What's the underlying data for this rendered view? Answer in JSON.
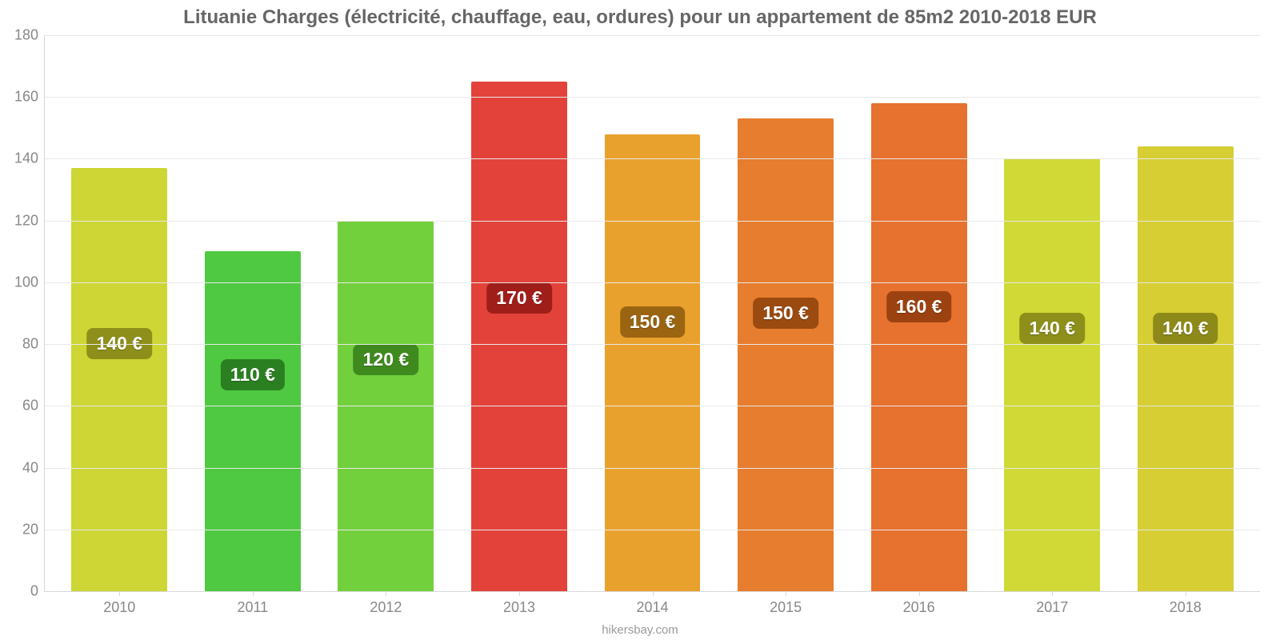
{
  "chart": {
    "type": "bar",
    "title": "Lituanie Charges (électricité, chauffage, eau, ordures) pour un appartement de 85m2 2010-2018 EUR",
    "title_fontsize": 24,
    "title_color": "#666666",
    "background_color": "#ffffff",
    "grid_color": "#e8e8e8",
    "axis_color": "#d8d8d8",
    "tick_label_color": "#888888",
    "tick_label_fontsize": 18,
    "ylim": [
      0,
      180
    ],
    "ytick_step": 20,
    "yticks": [
      0,
      20,
      40,
      60,
      80,
      100,
      120,
      140,
      160,
      180
    ],
    "bar_width_pct": 72,
    "bars": [
      {
        "category": "2010",
        "value": 137,
        "label": "140 €",
        "bar_color": "#cdd634",
        "badge_bg": "#8d8f1a",
        "badge_text": "#ffffff",
        "badge_y": 75
      },
      {
        "category": "2011",
        "value": 110,
        "label": "110 €",
        "bar_color": "#4fc941",
        "badge_bg": "#2a7f20",
        "badge_text": "#ffffff",
        "badge_y": 65
      },
      {
        "category": "2012",
        "value": 120,
        "label": "120 €",
        "bar_color": "#73d03d",
        "badge_bg": "#3f8a1f",
        "badge_text": "#ffffff",
        "badge_y": 70
      },
      {
        "category": "2013",
        "value": 165,
        "label": "170 €",
        "bar_color": "#e3423a",
        "badge_bg": "#a01e19",
        "badge_text": "#ffffff",
        "badge_y": 90
      },
      {
        "category": "2014",
        "value": 148,
        "label": "150 €",
        "bar_color": "#e9a12e",
        "badge_bg": "#9b6411",
        "badge_text": "#ffffff",
        "badge_y": 82
      },
      {
        "category": "2015",
        "value": 153,
        "label": "150 €",
        "bar_color": "#e77d2e",
        "badge_bg": "#9b4a10",
        "badge_text": "#ffffff",
        "badge_y": 85
      },
      {
        "category": "2016",
        "value": 158,
        "label": "160 €",
        "bar_color": "#e7712e",
        "badge_bg": "#9b4210",
        "badge_text": "#ffffff",
        "badge_y": 87
      },
      {
        "category": "2017",
        "value": 140,
        "label": "140 €",
        "bar_color": "#d0d935",
        "badge_bg": "#8d8f1a",
        "badge_text": "#ffffff",
        "badge_y": 80
      },
      {
        "category": "2018",
        "value": 144,
        "label": "140 €",
        "bar_color": "#d6ce33",
        "badge_bg": "#8d8a1a",
        "badge_text": "#ffffff",
        "badge_y": 80
      }
    ],
    "badge_fontsize": 23,
    "xlabel_fontsize": 18,
    "attribution": "hikersbay.com",
    "attribution_fontsize": 15,
    "attribution_color": "#9a9a9a"
  }
}
